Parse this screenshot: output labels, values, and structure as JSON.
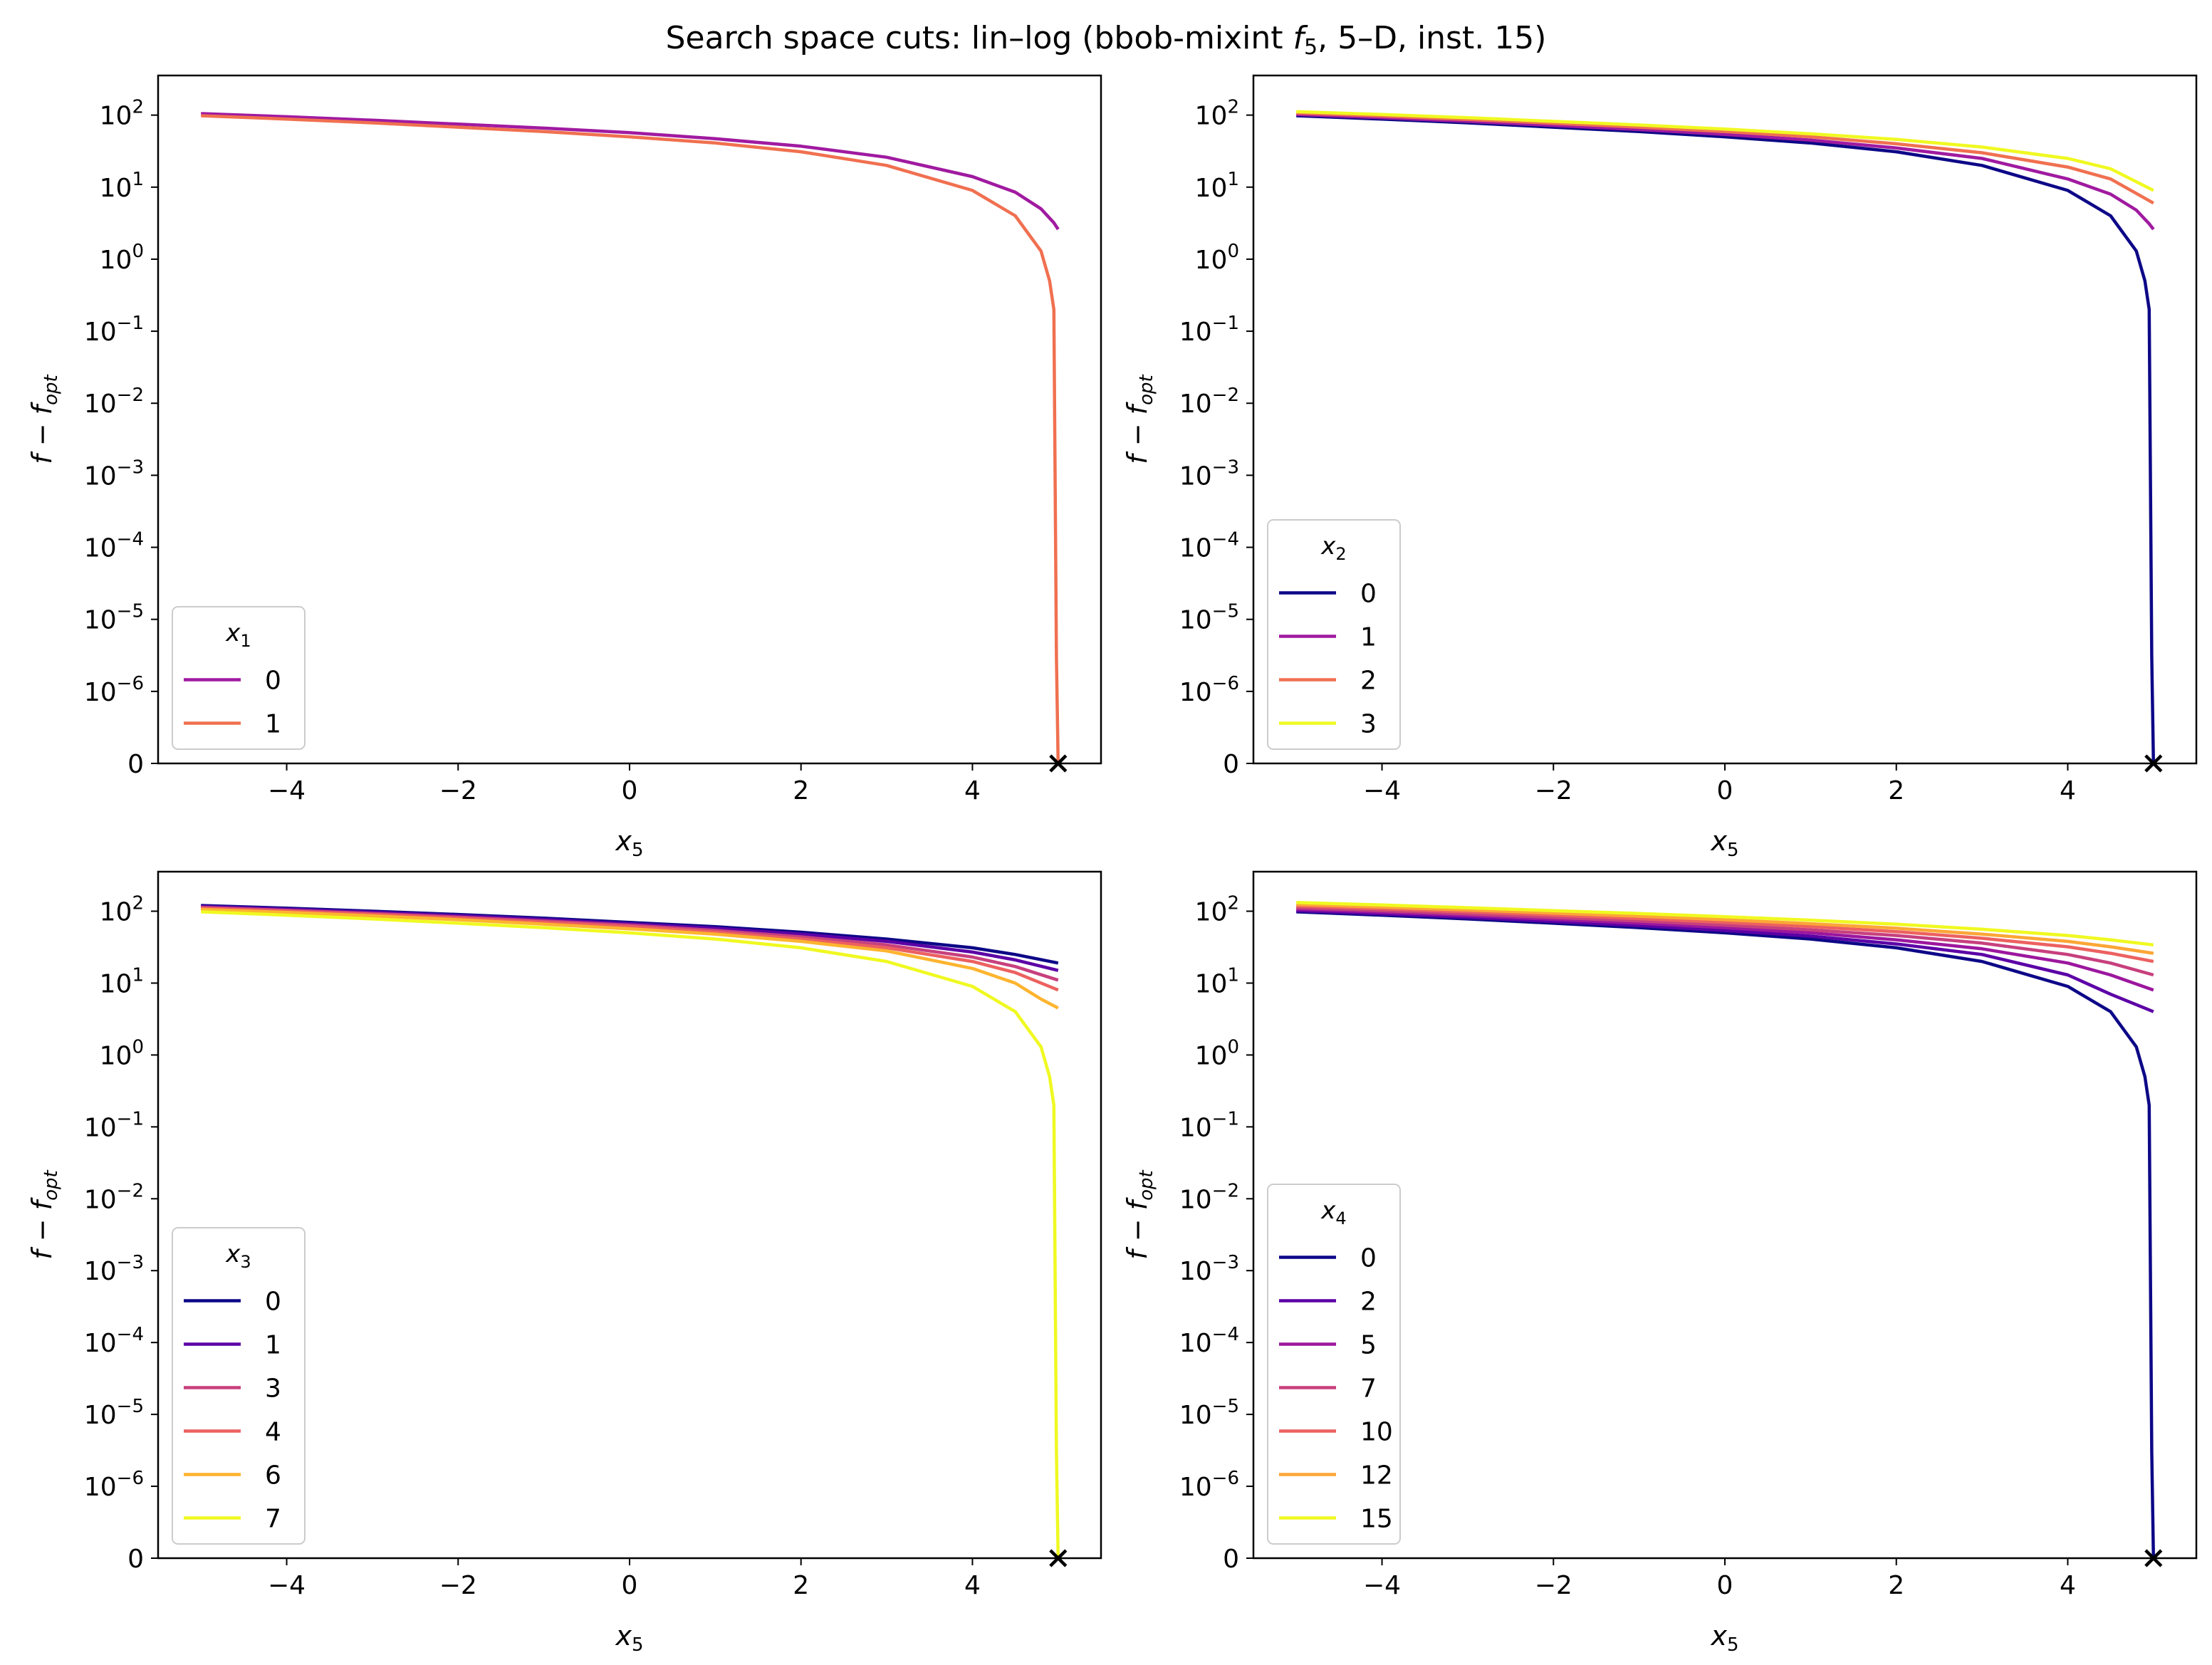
{
  "title_prefix": "Search space cuts: lin–log (bbob-mixint ",
  "title_fn": "f",
  "title_fn_sub": "5",
  "title_suffix": ", 5–D, inst. 15)",
  "chart_data": [
    {
      "type": "line",
      "xlabel": "x",
      "xlabel_sub": "5",
      "ylabel_f": "f",
      "ylabel_minus": " − ",
      "ylabel_opt": "f",
      "ylabel_opt_sub": "opt",
      "yscale": "symlog",
      "x_ticks": [
        "−4",
        "−2",
        "0",
        "2",
        "4"
      ],
      "y_ticks": [
        {
          "b": "0",
          "e": ""
        },
        {
          "b": "10",
          "e": "−6"
        },
        {
          "b": "10",
          "e": "−5"
        },
        {
          "b": "10",
          "e": "−4"
        },
        {
          "b": "10",
          "e": "−3"
        },
        {
          "b": "10",
          "e": "−2"
        },
        {
          "b": "10",
          "e": "−1"
        },
        {
          "b": "10",
          "e": "0"
        },
        {
          "b": "10",
          "e": "1"
        },
        {
          "b": "10",
          "e": "2"
        }
      ],
      "xlim": [
        -5.5,
        5.5
      ],
      "legend_title": "x",
      "legend_title_sub": "1",
      "legend_placement": "lower-left",
      "optimum_marker": {
        "x": 5,
        "y": 0,
        "symbol": "x"
      },
      "series": [
        {
          "name": "0",
          "color": "#a01aa0",
          "x": [
            -5,
            -4,
            -3,
            -2,
            -1,
            0,
            1,
            2,
            3,
            4,
            4.5,
            4.8,
            4.95,
            5.0
          ],
          "y": [
            105,
            95,
            85,
            75,
            66,
            57,
            47,
            37,
            26,
            14,
            8.5,
            5,
            3.2,
            2.6
          ]
        },
        {
          "name": "1",
          "color": "#f07050",
          "x": [
            -5,
            -4,
            -3,
            -2,
            -1,
            0,
            1,
            2,
            3,
            4,
            4.5,
            4.8,
            4.9,
            4.95,
            4.98,
            5.0
          ],
          "y": [
            98,
            88,
            78,
            68,
            59,
            50,
            41,
            31,
            20,
            9,
            4,
            1.3,
            0.5,
            0.2,
            3e-06,
            0
          ]
        }
      ]
    },
    {
      "type": "line",
      "xlabel": "x",
      "xlabel_sub": "5",
      "ylabel_f": "f",
      "ylabel_minus": " − ",
      "ylabel_opt": "f",
      "ylabel_opt_sub": "opt",
      "yscale": "symlog",
      "x_ticks": [
        "−4",
        "−2",
        "0",
        "2",
        "4"
      ],
      "y_ticks": [
        {
          "b": "0",
          "e": ""
        },
        {
          "b": "10",
          "e": "−6"
        },
        {
          "b": "10",
          "e": "−5"
        },
        {
          "b": "10",
          "e": "−4"
        },
        {
          "b": "10",
          "e": "−3"
        },
        {
          "b": "10",
          "e": "−2"
        },
        {
          "b": "10",
          "e": "−1"
        },
        {
          "b": "10",
          "e": "0"
        },
        {
          "b": "10",
          "e": "1"
        },
        {
          "b": "10",
          "e": "2"
        }
      ],
      "xlim": [
        -5.5,
        5.5
      ],
      "legend_title": "x",
      "legend_title_sub": "2",
      "legend_placement": "lower-left",
      "optimum_marker": {
        "x": 5,
        "y": 0,
        "symbol": "x"
      },
      "series": [
        {
          "name": "0",
          "color": "#0d0887",
          "x": [
            -5,
            -4,
            -3,
            -2,
            -1,
            0,
            1,
            2,
            3,
            4,
            4.5,
            4.8,
            4.9,
            4.95,
            4.98,
            5.0
          ],
          "y": [
            98,
            88,
            78,
            68,
            59,
            50,
            41,
            31,
            20,
            9,
            4,
            1.3,
            0.5,
            0.2,
            3e-06,
            0
          ]
        },
        {
          "name": "1",
          "color": "#a01aa0",
          "x": [
            -5,
            -4,
            -3,
            -2,
            -1,
            0,
            1,
            2,
            3,
            4,
            4.5,
            4.8,
            4.95,
            5.0
          ],
          "y": [
            102,
            92,
            82,
            72,
            63,
            54,
            45,
            35,
            25,
            13,
            8,
            4.8,
            3.1,
            2.6
          ]
        },
        {
          "name": "2",
          "color": "#f07050",
          "x": [
            -5,
            -4,
            -3,
            -2,
            -1,
            0,
            1,
            2,
            3,
            4,
            4.5,
            5.0
          ],
          "y": [
            107,
            97,
            87,
            77,
            68,
            59,
            50,
            40,
            30,
            19,
            13,
            6
          ]
        },
        {
          "name": "3",
          "color": "#f0f921",
          "x": [
            -5,
            -4,
            -3,
            -2,
            -1,
            0,
            1,
            2,
            3,
            4,
            4.5,
            5.0
          ],
          "y": [
            112,
            102,
            92,
            82,
            73,
            64,
            55,
            46,
            36,
            25,
            18,
            9
          ]
        }
      ]
    },
    {
      "type": "line",
      "xlabel": "x",
      "xlabel_sub": "5",
      "ylabel_f": "f",
      "ylabel_minus": " − ",
      "ylabel_opt": "f",
      "ylabel_opt_sub": "opt",
      "yscale": "symlog",
      "x_ticks": [
        "−4",
        "−2",
        "0",
        "2",
        "4"
      ],
      "y_ticks": [
        {
          "b": "0",
          "e": ""
        },
        {
          "b": "10",
          "e": "−6"
        },
        {
          "b": "10",
          "e": "−5"
        },
        {
          "b": "10",
          "e": "−4"
        },
        {
          "b": "10",
          "e": "−3"
        },
        {
          "b": "10",
          "e": "−2"
        },
        {
          "b": "10",
          "e": "−1"
        },
        {
          "b": "10",
          "e": "0"
        },
        {
          "b": "10",
          "e": "1"
        },
        {
          "b": "10",
          "e": "2"
        }
      ],
      "xlim": [
        -5.5,
        5.5
      ],
      "legend_title": "x",
      "legend_title_sub": "3",
      "legend_placement": "lower-left",
      "optimum_marker": {
        "x": 5,
        "y": 0,
        "symbol": "x"
      },
      "series": [
        {
          "name": "0",
          "color": "#0d0887",
          "x": [
            -5,
            -4,
            -3,
            -2,
            -1,
            0,
            1,
            2,
            3,
            4,
            4.5,
            5.0
          ],
          "y": [
            120,
            110,
            100,
            90,
            80,
            70,
            61,
            51,
            41,
            31,
            25,
            19
          ]
        },
        {
          "name": "1",
          "color": "#5c01a6",
          "x": [
            -5,
            -4,
            -3,
            -2,
            -1,
            0,
            1,
            2,
            3,
            4,
            4.5,
            5.0
          ],
          "y": [
            117,
            107,
            97,
            87,
            77,
            67,
            58,
            48,
            38,
            27,
            21,
            15
          ]
        },
        {
          "name": "3",
          "color": "#c7407e",
          "x": [
            -5,
            -4,
            -3,
            -2,
            -1,
            0,
            1,
            2,
            3,
            4,
            4.5,
            5.0
          ],
          "y": [
            113,
            103,
            93,
            83,
            73,
            64,
            54,
            44,
            34,
            23,
            17,
            11
          ]
        },
        {
          "name": "4",
          "color": "#ec6160",
          "x": [
            -5,
            -4,
            -3,
            -2,
            -1,
            0,
            1,
            2,
            3,
            4,
            4.5,
            5.0
          ],
          "y": [
            110,
            100,
            90,
            80,
            70,
            61,
            51,
            41,
            31,
            20,
            14,
            8
          ]
        },
        {
          "name": "6",
          "color": "#fdb42f",
          "x": [
            -5,
            -4,
            -3,
            -2,
            -1,
            0,
            1,
            2,
            3,
            4,
            4.5,
            4.8,
            5.0
          ],
          "y": [
            106,
            96,
            86,
            76,
            66,
            57,
            48,
            38,
            28,
            16,
            10,
            6,
            4.5
          ]
        },
        {
          "name": "7",
          "color": "#f0f921",
          "x": [
            -5,
            -4,
            -3,
            -2,
            -1,
            0,
            1,
            2,
            3,
            4,
            4.5,
            4.8,
            4.9,
            4.95,
            4.98,
            5.0
          ],
          "y": [
            98,
            88,
            78,
            68,
            59,
            50,
            41,
            31,
            20,
            9,
            4,
            1.3,
            0.5,
            0.2,
            3e-06,
            0
          ]
        }
      ]
    },
    {
      "type": "line",
      "xlabel": "x",
      "xlabel_sub": "5",
      "ylabel_f": "f",
      "ylabel_minus": " − ",
      "ylabel_opt": "f",
      "ylabel_opt_sub": "opt",
      "yscale": "symlog",
      "x_ticks": [
        "−4",
        "−2",
        "0",
        "2",
        "4"
      ],
      "y_ticks": [
        {
          "b": "0",
          "e": ""
        },
        {
          "b": "10",
          "e": "−6"
        },
        {
          "b": "10",
          "e": "−5"
        },
        {
          "b": "10",
          "e": "−4"
        },
        {
          "b": "10",
          "e": "−3"
        },
        {
          "b": "10",
          "e": "−2"
        },
        {
          "b": "10",
          "e": "−1"
        },
        {
          "b": "10",
          "e": "0"
        },
        {
          "b": "10",
          "e": "1"
        },
        {
          "b": "10",
          "e": "2"
        }
      ],
      "xlim": [
        -5.5,
        5.5
      ],
      "legend_title": "x",
      "legend_title_sub": "4",
      "legend_placement": "lower-left",
      "optimum_marker": {
        "x": 5,
        "y": 0,
        "symbol": "x"
      },
      "series": [
        {
          "name": "0",
          "color": "#0d0887",
          "x": [
            -5,
            -4,
            -3,
            -2,
            -1,
            0,
            1,
            2,
            3,
            4,
            4.5,
            4.8,
            4.9,
            4.95,
            4.98,
            5.0
          ],
          "y": [
            98,
            88,
            78,
            68,
            59,
            50,
            41,
            31,
            20,
            9,
            4,
            1.3,
            0.5,
            0.2,
            3e-06,
            0
          ]
        },
        {
          "name": "2",
          "color": "#5c01a6",
          "x": [
            -5,
            -4,
            -3,
            -2,
            -1,
            0,
            1,
            2,
            3,
            4,
            4.5,
            5.0
          ],
          "y": [
            102,
            92,
            82,
            72,
            63,
            54,
            45,
            35,
            25,
            13,
            7,
            4
          ]
        },
        {
          "name": "5",
          "color": "#9c179e",
          "x": [
            -5,
            -4,
            -3,
            -2,
            -1,
            0,
            1,
            2,
            3,
            4,
            4.5,
            5.0
          ],
          "y": [
            107,
            97,
            87,
            77,
            68,
            59,
            50,
            40,
            30,
            19,
            13,
            8
          ]
        },
        {
          "name": "7",
          "color": "#c7407e",
          "x": [
            -5,
            -4,
            -3,
            -2,
            -1,
            0,
            1,
            2,
            3,
            4,
            4.5,
            5.0
          ],
          "y": [
            112,
            102,
            92,
            82,
            73,
            64,
            55,
            46,
            36,
            25,
            19,
            13
          ]
        },
        {
          "name": "10",
          "color": "#ec6160",
          "x": [
            -5,
            -4,
            -3,
            -2,
            -1,
            0,
            1,
            2,
            3,
            4,
            4.5,
            5.0
          ],
          "y": [
            118,
            108,
            98,
            88,
            79,
            70,
            61,
            52,
            42,
            32,
            26,
            20
          ]
        },
        {
          "name": "12",
          "color": "#fca636",
          "x": [
            -5,
            -4,
            -3,
            -2,
            -1,
            0,
            1,
            2,
            3,
            4,
            4.5,
            5.0
          ],
          "y": [
            124,
            114,
            104,
            94,
            85,
            76,
            67,
            58,
            48,
            38,
            32,
            26
          ]
        },
        {
          "name": "15",
          "color": "#f0f921",
          "x": [
            -5,
            -4,
            -3,
            -2,
            -1,
            0,
            1,
            2,
            3,
            4,
            4.5,
            5.0
          ],
          "y": [
            132,
            122,
            112,
            102,
            93,
            84,
            75,
            66,
            56,
            46,
            40,
            34
          ]
        }
      ]
    }
  ]
}
